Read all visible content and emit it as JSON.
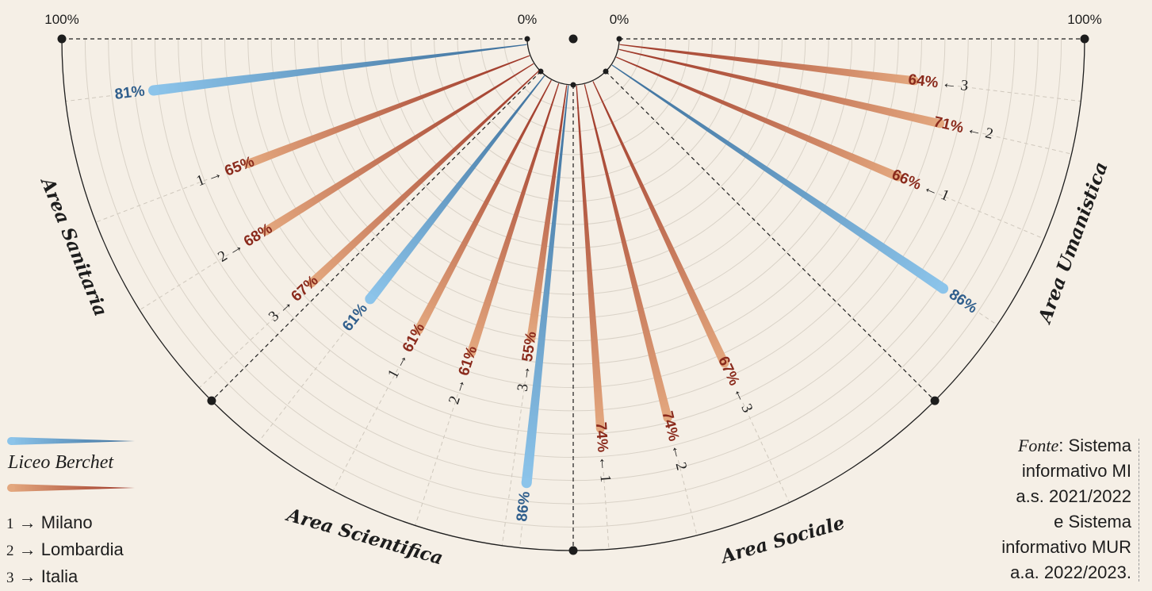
{
  "chart_data": {
    "type": "radial-bar",
    "scale_label_min": "0%",
    "scale_label_max": "100%",
    "series": [
      {
        "name": "Liceo Berchet",
        "color_start": "#8cc4ea",
        "color_end": "#3c6e9a"
      },
      {
        "name": "",
        "color_start": "#e3a77e",
        "color_end": "#9c3426"
      }
    ],
    "areas": [
      {
        "name": "Area Sanitaria",
        "bars": [
          {
            "kind": "berchet",
            "value": 81,
            "label": "81%",
            "marker": ""
          },
          {
            "kind": "ref",
            "value": 65,
            "label": "65%",
            "marker": "1"
          },
          {
            "kind": "ref",
            "value": 68,
            "label": "68%",
            "marker": "2"
          },
          {
            "kind": "ref",
            "value": 67,
            "label": "67%",
            "marker": "3"
          }
        ]
      },
      {
        "name": "Area Scientifica",
        "bars": [
          {
            "kind": "berchet",
            "value": 61,
            "label": "61%",
            "marker": ""
          },
          {
            "kind": "ref",
            "value": 61,
            "label": "61%",
            "marker": "1"
          },
          {
            "kind": "ref",
            "value": 61,
            "label": "61%",
            "marker": "2"
          },
          {
            "kind": "ref",
            "value": 55,
            "label": "55%",
            "marker": "3"
          }
        ]
      },
      {
        "name": "Area Sociale",
        "bars": [
          {
            "kind": "berchet",
            "value": 86,
            "label": "86%",
            "marker": ""
          },
          {
            "kind": "ref",
            "value": 74,
            "label": "74%",
            "marker": "1"
          },
          {
            "kind": "ref",
            "value": 74,
            "label": "74%",
            "marker": "2"
          },
          {
            "kind": "ref",
            "value": 67,
            "label": "67%",
            "marker": "3"
          }
        ]
      },
      {
        "name": "Area Umanistica",
        "bars": [
          {
            "kind": "berchet",
            "value": 86,
            "label": "86%",
            "marker": ""
          },
          {
            "kind": "ref",
            "value": 66,
            "label": "66%",
            "marker": "1"
          },
          {
            "kind": "ref",
            "value": 71,
            "label": "71%",
            "marker": "2"
          },
          {
            "kind": "ref",
            "value": 64,
            "label": "64%",
            "marker": "3"
          }
        ]
      }
    ]
  },
  "legend": {
    "berchet_label": "Liceo Berchet",
    "items": [
      {
        "num": "1",
        "arrow": "→",
        "label": "Milano"
      },
      {
        "num": "2",
        "arrow": "→",
        "label": "Lombardia"
      },
      {
        "num": "3",
        "arrow": "→",
        "label": "Italia"
      }
    ]
  },
  "source": {
    "fonte": "Fonte",
    "line1": ": Sistema",
    "line2": "informativo MI",
    "line3": "a.s. 2021/2022",
    "line4": "e Sistema",
    "line5": "informativo MUR",
    "line6": "a.a. 2022/2023."
  },
  "colors": {
    "background": "#f5efe6",
    "berchet_text": "#2f5e8c",
    "ref_text": "#8a2a1c",
    "ink": "#1d1d1d"
  }
}
